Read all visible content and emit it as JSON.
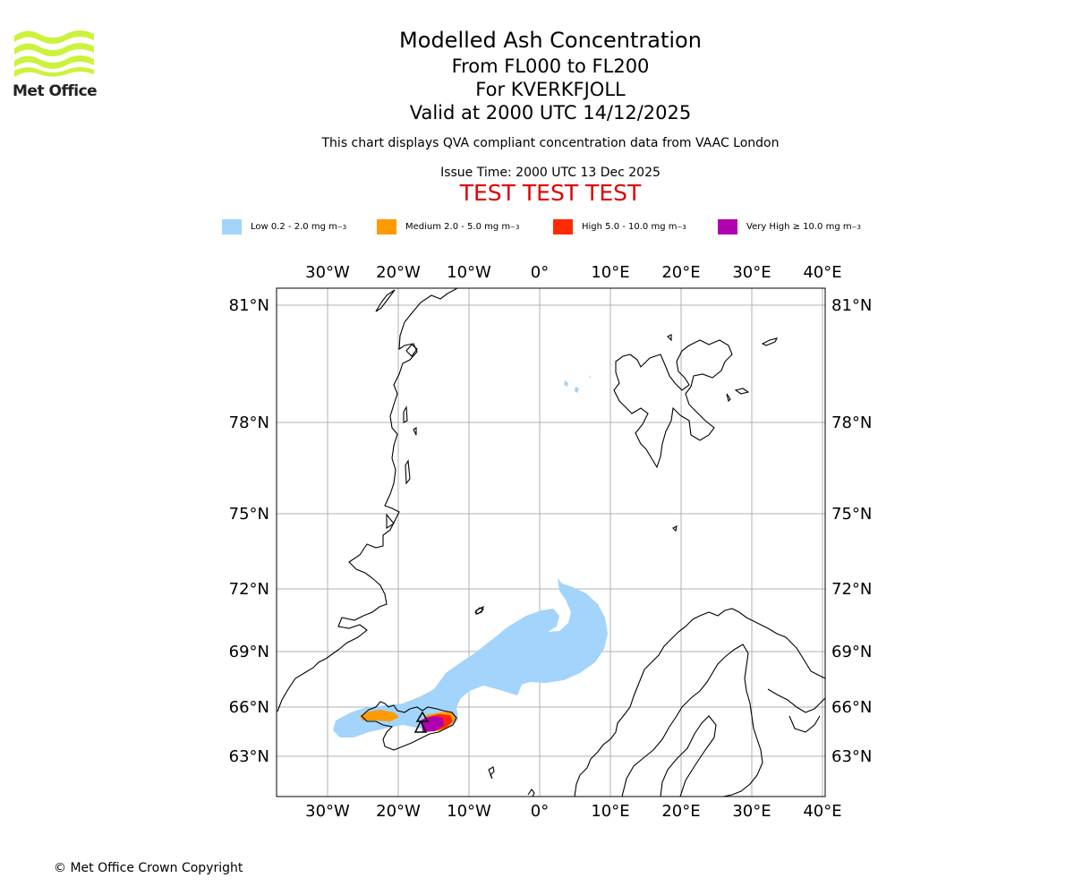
{
  "header": {
    "logo_text": "Met Office",
    "title": "Modelled Ash Concentration",
    "level_range": "From FL000 to FL200",
    "volcano": "For KVERKFJOLL",
    "valid_time": "Valid at 2000 UTC 14/12/2025",
    "qva_note": "This chart displays QVA compliant concentration data from VAAC London",
    "issue_time": "Issue Time: 2000 UTC 13 Dec 2025",
    "test_banner": "TEST TEST TEST"
  },
  "legend": [
    {
      "label": "Low 0.2 - 2.0 mg m",
      "sup": "−3",
      "color": "#a3d4fb"
    },
    {
      "label": "Medium 2.0 - 5.0 mg m",
      "sup": "−3",
      "color": "#ff9a00"
    },
    {
      "label": "High 5.0 - 10.0 mg m",
      "sup": "−3",
      "color": "#ff2a00"
    },
    {
      "label": "Very High  ≥  10.0 mg m",
      "sup": "−3",
      "color": "#b000b0"
    }
  ],
  "map": {
    "lon_labels": [
      "30°W",
      "20°W",
      "10°W",
      "0°",
      "10°E",
      "20°E",
      "30°E",
      "40°E"
    ],
    "lat_labels": [
      "81°N",
      "78°N",
      "75°N",
      "72°N",
      "69°N",
      "66°N",
      "63°N"
    ],
    "volcano_marker": "volcano-triangle"
  },
  "footer": {
    "copyright": "© Met Office Crown Copyright"
  }
}
